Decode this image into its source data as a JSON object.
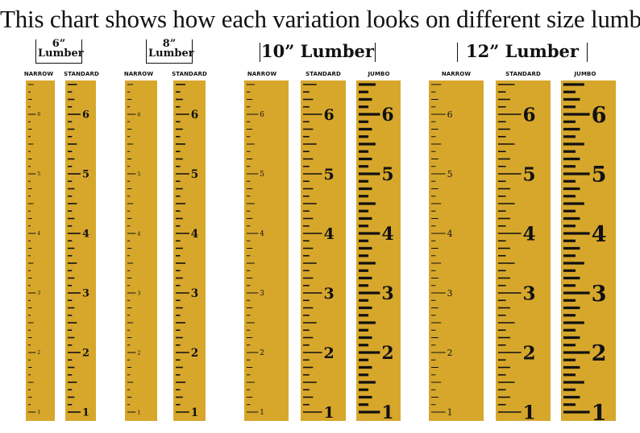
{
  "headline": "This chart shows how each variation looks on different size lumber",
  "groups": [
    {
      "title_line1": "6”",
      "title_line2": "Lumber"
    },
    {
      "title_line1": "8”",
      "title_line2": "Lumber"
    },
    {
      "title": "10” Lumber"
    },
    {
      "title": "12” Lumber"
    }
  ],
  "variation_labels": {
    "narrow": "NARROW",
    "standard": "STANDARD",
    "jumbo": "JUMBO"
  },
  "ruler_numbers": [
    "1",
    "2",
    "3",
    "4",
    "5",
    "6"
  ],
  "colors": {
    "ruler_fill": "#d7a72c",
    "ink": "#111111",
    "background": "#ffffff"
  }
}
